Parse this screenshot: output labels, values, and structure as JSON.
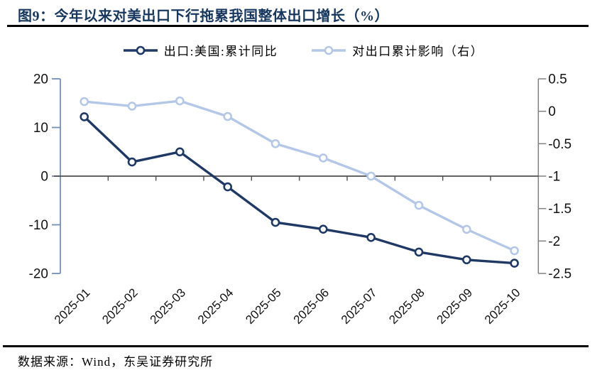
{
  "page": {
    "title": "图9：今年以来对美出口下行拖累我国整体出口增长（%）",
    "source": "数据来源：Wind，东吴证券研究所"
  },
  "legend": {
    "items": [
      {
        "label": "出口:美国:累计同比"
      },
      {
        "label": "对出口累计影响（右）"
      }
    ]
  },
  "colors": {
    "title": "#17375E",
    "series_us_exports": "#1F3864",
    "series_contribution": "#B4C7E7",
    "left_axis": "#7191B3",
    "right_axis": "#808080",
    "zero_line": "#4D4D4D",
    "tick_label": "#111111",
    "rule": "#000000"
  },
  "chart_data": {
    "type": "line",
    "title": "今年以来对美出口下行拖累我国整体出口增长（%）",
    "figure_label": "图9",
    "categories": [
      "2025-01",
      "2025-02",
      "2025-03",
      "2025-04",
      "2025-05",
      "2025-06",
      "2025-07",
      "2025-08",
      "2025-09",
      "2025-10"
    ],
    "series": [
      {
        "name": "出口:美国:累计同比",
        "axis": "left",
        "color": "#1F3864",
        "marker": "open-circle",
        "values": [
          12.2,
          2.9,
          5.0,
          -2.2,
          -9.5,
          -10.9,
          -12.6,
          -15.6,
          -17.2,
          -17.9
        ]
      },
      {
        "name": "对出口累计影响（右）",
        "axis": "right",
        "color": "#B4C7E7",
        "marker": "open-circle",
        "values": [
          0.15,
          0.08,
          0.16,
          -0.08,
          -0.5,
          -0.72,
          -1.0,
          -1.45,
          -1.82,
          -2.15
        ]
      }
    ],
    "left_axis": {
      "min": -20,
      "max": 20,
      "ticks": [
        20,
        10,
        0,
        -10,
        -20
      ]
    },
    "right_axis": {
      "min": -2.5,
      "max": 0.5,
      "ticks": [
        0.5,
        0,
        -0.5,
        -1,
        -1.5,
        -2,
        -2.5
      ]
    },
    "grid": false,
    "legend_position": "top",
    "x_label_rotation": 45,
    "source": "数据来源：Wind，东吴证券研究所"
  }
}
